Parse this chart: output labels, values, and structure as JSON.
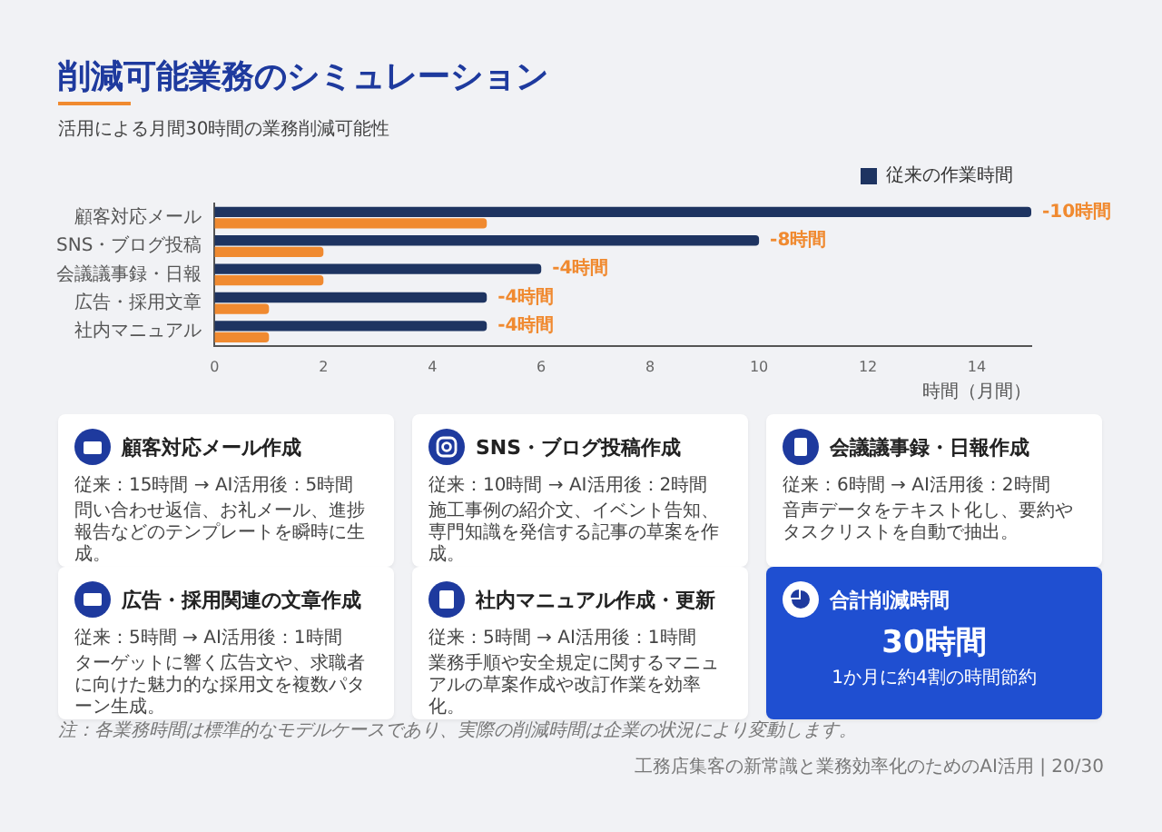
{
  "chart_data": [
    {
      "type": "bar",
      "orientation": "horizontal",
      "title": "削減可能業務のシミュレーション",
      "subtitle": "活用による月間30時間の業務削減可能性",
      "categories": [
        "顧客対応メール",
        "SNS・ブログ投稿",
        "会議議事録・日報",
        "広告・採用文章",
        "社内マニュアル"
      ],
      "series": [
        {
          "name": "従来の作業時間",
          "color": "#1e3461",
          "values": [
            15,
            10,
            6,
            5,
            5
          ]
        },
        {
          "color": "#f08a30",
          "values": [
            5,
            2,
            2,
            1,
            1
          ]
        }
      ],
      "xlim": [
        0,
        15
      ],
      "xticks": [
        0,
        2,
        4,
        6,
        8,
        10,
        12,
        14
      ],
      "xlabel": "時間（月間）",
      "grid": false,
      "legend": "top right",
      "annotations": [
        {
          "text": "-10時間",
          "x": 15,
          "y": "顧客対応メール"
        },
        {
          "text": "-8時間",
          "x": 10,
          "y": "SNS・ブログ投稿"
        },
        {
          "text": "-4時間",
          "x": 6,
          "y": "会議議事録・日報"
        },
        {
          "text": "-4時間",
          "x": 5,
          "y": "広告・採用文章"
        },
        {
          "text": "-4時間",
          "x": 5,
          "y": "社内マニュアル"
        }
      ]
    },
    {
      "type": "other",
      "annotations": [
        "顧客対応メール作成",
        "従来：15時間 → AI活用後：5時間",
        "問い合わせ返信、お礼メール、進捗報告などのテンプレートを瞬時に生成。",
        "SNS・ブログ投稿作成",
        "従来：10時間 → AI活用後：2時間",
        "施工事例の紹介文、イベント告知、専門知識を発信する記事の草案を作成。",
        "会議議事録・日報作成",
        "従来：6時間 → AI活用後：2時間",
        "音声データをテキスト化し、要約やタスクリストを自動で抽出。",
        "広告・採用関連の文章作成",
        "従来：5時間 → AI活用後：1時間",
        "ターゲットに響く広告文や、求職者に向けた魅力的な採用文を複数パターン生成。",
        "社内マニュアル作成・更新",
        "従来：5時間 → AI活用後：1時間",
        "業務手順や安全規定に関するマニュアルの草案作成や改訂作業を効率化。",
        "合計削減時間",
        "30時間",
        "1か月に約4割の時間節約",
        "注：各業務時間は標準的なモデルケースであり、実際の削減時間は企業の状況により変動します。",
        "工務店集客の新常識と業務効率化のためのAI活用 | 20/30"
      ]
    }
  ]
}
